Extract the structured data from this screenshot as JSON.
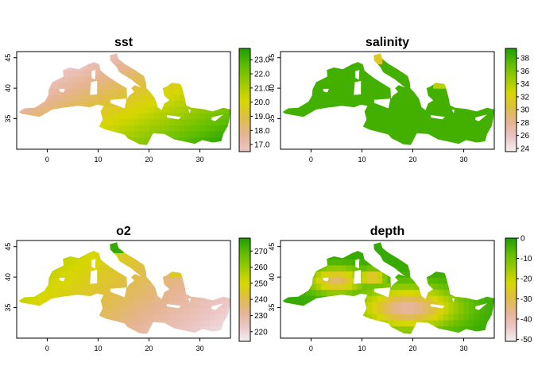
{
  "chart_data": [
    {
      "type": "heatmap",
      "title": "sst",
      "x_ticks": [
        0,
        10,
        20,
        30
      ],
      "y_ticks": [
        35,
        40,
        45
      ],
      "xlim": [
        -6,
        36
      ],
      "ylim": [
        30,
        46
      ],
      "legend": {
        "position": "right",
        "min": 16.5,
        "max": 23.8,
        "ticks": [
          "17.0",
          "18.0",
          "19.0",
          "20.0",
          "21.0",
          "22.0",
          "23.0"
        ],
        "tick_values": [
          17,
          18,
          19,
          20,
          21,
          22,
          23
        ],
        "palette": [
          "#ecc6c6",
          "#e6b493",
          "#dfbe41",
          "#d7d700",
          "#9ccb00",
          "#5fbd00",
          "#1f9f00"
        ]
      },
      "field": "sst"
    },
    {
      "type": "heatmap",
      "title": "salinity",
      "x_ticks": [
        0,
        10,
        20,
        30
      ],
      "y_ticks": [
        35,
        40,
        45
      ],
      "xlim": [
        -6,
        36
      ],
      "ylim": [
        30,
        46
      ],
      "legend": {
        "position": "right",
        "min": 23.5,
        "max": 39.5,
        "ticks": [
          "24",
          "26",
          "28",
          "30",
          "32",
          "34",
          "36",
          "38"
        ],
        "tick_values": [
          24,
          26,
          28,
          30,
          32,
          34,
          36,
          38
        ],
        "palette": [
          "#f2f2f2",
          "#ecc6c6",
          "#e6b493",
          "#dfbe41",
          "#d7d700",
          "#9ccb00",
          "#5fbd00",
          "#1f9f00"
        ]
      },
      "field": "salinity"
    },
    {
      "type": "heatmap",
      "title": "o2",
      "x_ticks": [
        0,
        10,
        20,
        30
      ],
      "y_ticks": [
        35,
        40,
        45
      ],
      "xlim": [
        -6,
        36
      ],
      "ylim": [
        30,
        46
      ],
      "legend": {
        "position": "right",
        "min": 214,
        "max": 278,
        "ticks": [
          "220",
          "230",
          "240",
          "250",
          "260",
          "270"
        ],
        "tick_values": [
          220,
          230,
          240,
          250,
          260,
          270
        ],
        "palette": [
          "#f2f2f2",
          "#ecc6c6",
          "#e6b493",
          "#dfbe41",
          "#d7d700",
          "#9ccb00",
          "#5fbd00",
          "#1f9f00"
        ]
      },
      "field": "o2"
    },
    {
      "type": "heatmap",
      "title": "depth",
      "x_ticks": [
        0,
        10,
        20,
        30
      ],
      "y_ticks": [
        35,
        40,
        45
      ],
      "xlim": [
        -6,
        36
      ],
      "ylim": [
        30,
        46
      ],
      "legend": {
        "position": "right",
        "min": -51,
        "max": 0,
        "ticks": [
          "-50",
          "-40",
          "-30",
          "-20",
          "-10",
          "0"
        ],
        "tick_values": [
          -50,
          -40,
          -30,
          -20,
          -10,
          0
        ],
        "palette": [
          "#f2f2f2",
          "#ecc6c6",
          "#e6b493",
          "#dfbe41",
          "#d7d700",
          "#9ccb00",
          "#5fbd00",
          "#1f9f00"
        ]
      },
      "field": "depth"
    }
  ]
}
